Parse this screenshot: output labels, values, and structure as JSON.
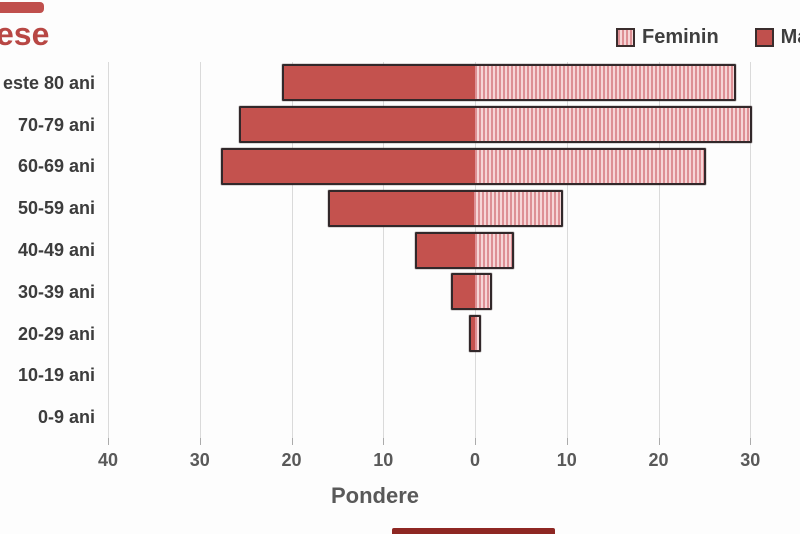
{
  "title": {
    "visible_text": "ese",
    "color": "#b84744"
  },
  "legend": {
    "items": [
      {
        "label": "Feminin",
        "swatch": "striped-pink-square"
      },
      {
        "label": "Ma",
        "swatch": "solid-red-square",
        "note_visible_text_only": "cut off at right edge"
      }
    ]
  },
  "chart_data": {
    "type": "bar",
    "subtype": "population-pyramid",
    "orientation": "horizontal",
    "title_visible_fragment": "ese",
    "xlabel": "Pondere",
    "categories_top_to_bottom": [
      "este 80 ani",
      "70-79 ani",
      "60-69 ani",
      "50-59 ani",
      "40-49 ani",
      "30-39 ani",
      "20-29 ani",
      "10-19 ani",
      "0-9 ani"
    ],
    "series": [
      {
        "name": "Masculin",
        "side": "left",
        "values": [
          21.0,
          25.7,
          27.7,
          16.0,
          6.5,
          2.6,
          0.7,
          0,
          0
        ]
      },
      {
        "name": "Feminin",
        "side": "right",
        "values": [
          28.5,
          30.2,
          25.2,
          9.6,
          4.2,
          1.9,
          0.7,
          0,
          0
        ]
      }
    ],
    "x_tick_labels": [
      "40",
      "30",
      "20",
      "10",
      "0",
      "10",
      "20",
      "30"
    ],
    "x_tick_values": [
      -40,
      -30,
      -20,
      -10,
      0,
      10,
      20,
      30
    ],
    "axis_abs_range": [
      0,
      40
    ],
    "grid": true,
    "legend_position": "top-right",
    "units": "percent (pondere)"
  },
  "colors": {
    "masculin_fill": "#c4524e",
    "feminin_stripe_dark": "#dd9095",
    "feminin_stripe_light": "#f6d6d7",
    "bar_border": "#32282a",
    "gridline": "#dadada",
    "axis_text": "#595959",
    "label_text": "#3c3c3c",
    "title_red": "#b84744"
  }
}
